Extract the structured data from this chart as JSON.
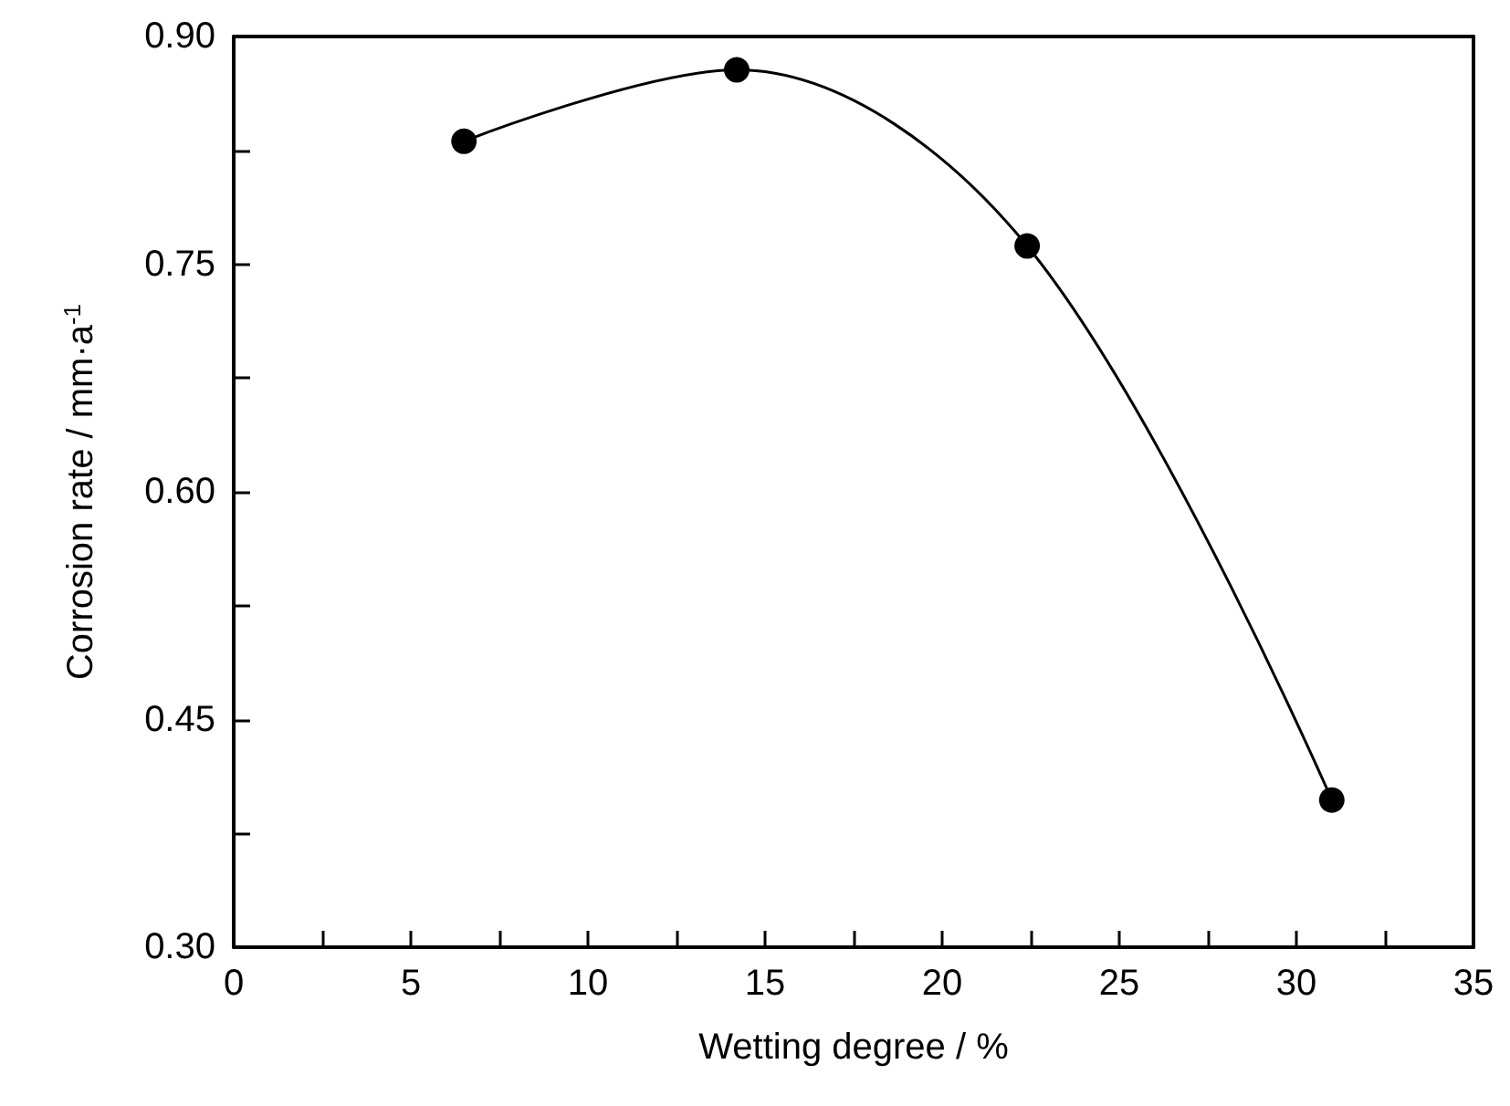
{
  "chart_data": {
    "type": "line",
    "xlabel": "Wetting degree / %",
    "ylabel": "Corrosion rate / mm·a$^{-1}$",
    "x": [
      6.5,
      14.2,
      22.4,
      31.0
    ],
    "series": [
      {
        "color": "#000000",
        "values": [
          0.831,
          0.878,
          0.762,
          0.397
        ]
      }
    ],
    "xlim": [
      0,
      35
    ],
    "xticks": [
      0,
      5,
      10,
      15,
      20,
      25,
      30,
      35
    ],
    "ylim": [
      0.3,
      0.9
    ],
    "yticks": [
      {
        "value": 0.3,
        "label": "0.30"
      },
      {
        "value": 0.45,
        "label": "0.45"
      },
      {
        "value": 0.6,
        "label": "0.60"
      },
      {
        "value": 0.75,
        "label": "0.75"
      },
      {
        "value": 0.9,
        "label": "0.90"
      }
    ],
    "marker": "circle",
    "line_style": "solid"
  }
}
